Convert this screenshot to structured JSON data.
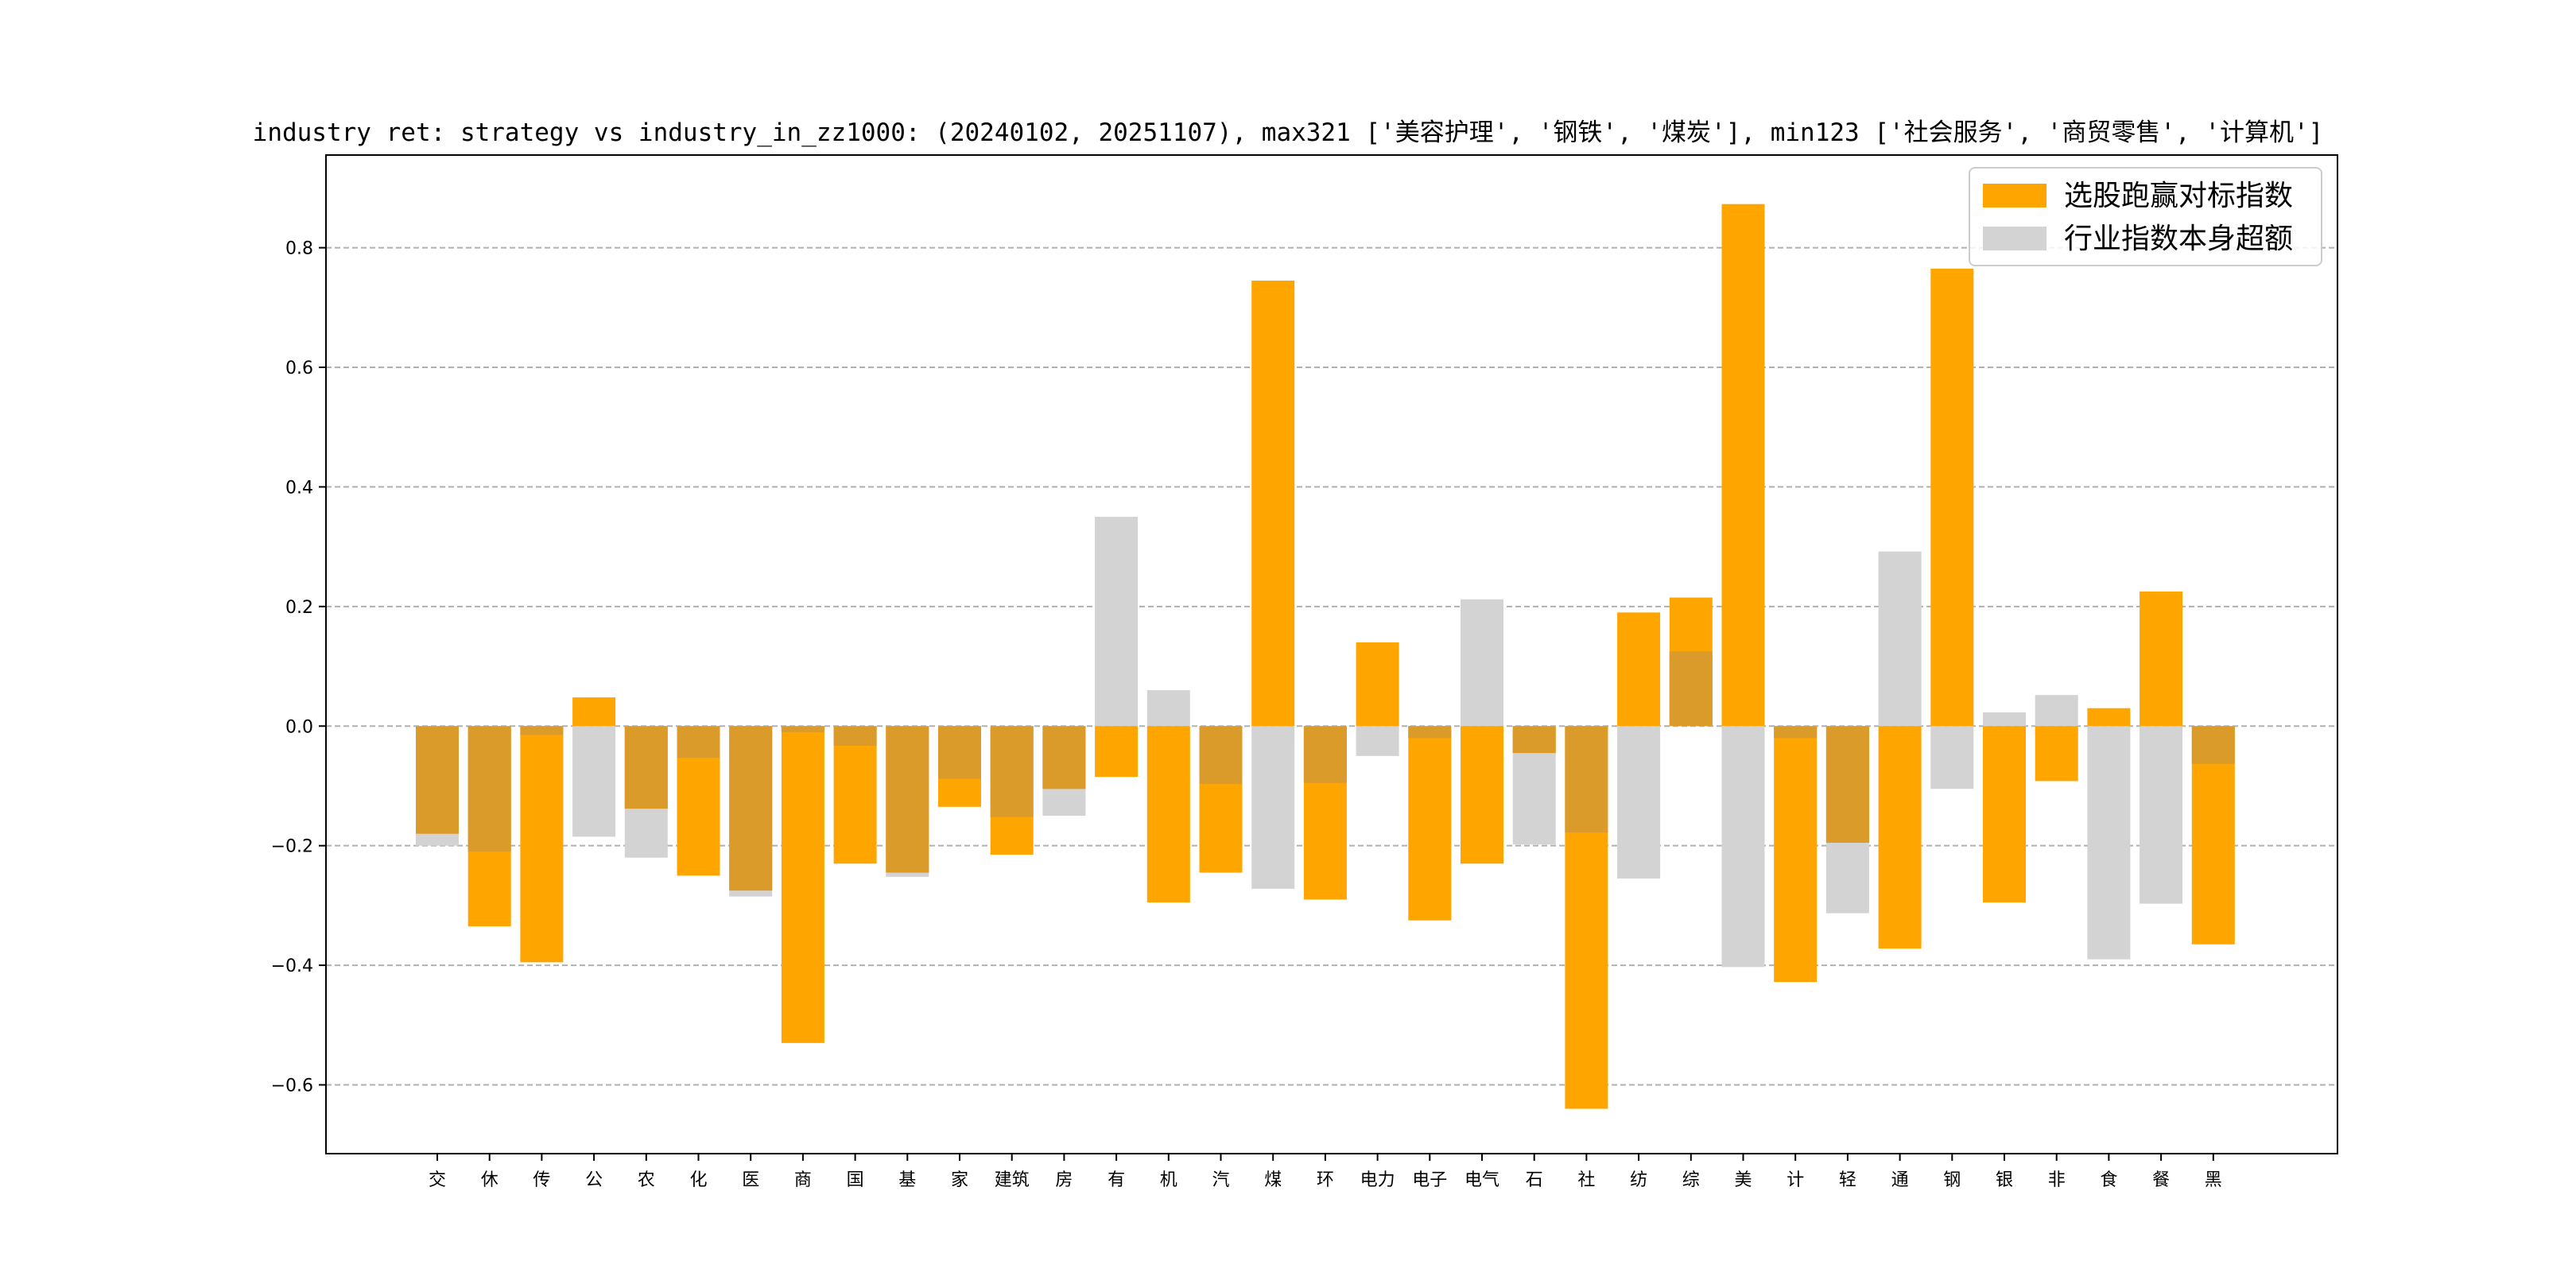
{
  "chart_data": {
    "type": "bar",
    "title": "industry ret: strategy vs industry_in_zz1000: (20240102, 20251107), max321 ['美容护理', '钢铁', '煤炭'], min123 ['社会服务', '商贸零售', '计算机']",
    "xlabel": "",
    "ylabel": "",
    "ylim": [
      -0.715,
      0.955
    ],
    "yticks": [
      -0.6,
      -0.4,
      -0.2,
      0.0,
      0.2,
      0.4,
      0.6,
      0.8
    ],
    "ytick_labels": [
      "−0.6",
      "−0.4",
      "−0.2",
      "0.0",
      "0.2",
      "0.4",
      "0.6",
      "0.8"
    ],
    "grid": "y-dashed",
    "legend_position": "top-right",
    "categories": [
      "交",
      "休",
      "传",
      "公",
      "农",
      "化",
      "医",
      "商",
      "国",
      "基",
      "家",
      "建筑",
      "房",
      "有",
      "机",
      "汽",
      "煤",
      "环",
      "电力",
      "电子",
      "电气",
      "石",
      "社",
      "纺",
      "综",
      "美",
      "计",
      "轻",
      "通",
      "钢",
      "银",
      "非",
      "食",
      "餐",
      "黑"
    ],
    "series": [
      {
        "name": "选股跑赢对标指数",
        "color": "#FFA500",
        "values": [
          -0.18,
          -0.335,
          -0.395,
          0.048,
          -0.138,
          -0.25,
          -0.275,
          -0.53,
          -0.23,
          -0.245,
          -0.135,
          -0.215,
          -0.105,
          -0.085,
          -0.295,
          -0.245,
          0.745,
          -0.29,
          0.14,
          -0.325,
          -0.23,
          -0.045,
          -0.64,
          0.19,
          0.215,
          0.873,
          -0.428,
          -0.195,
          -0.372,
          0.765,
          -0.295,
          -0.092,
          0.03,
          0.225,
          -0.365
        ]
      },
      {
        "name": "行业指数本身超额",
        "color": "#D3D3D3",
        "values": [
          -0.2,
          -0.21,
          -0.015,
          -0.185,
          -0.22,
          -0.053,
          -0.285,
          -0.01,
          -0.033,
          -0.252,
          -0.088,
          -0.152,
          -0.15,
          0.35,
          0.06,
          -0.097,
          -0.272,
          -0.095,
          -0.05,
          -0.02,
          0.212,
          -0.198,
          -0.178,
          -0.255,
          0.125,
          -0.403,
          -0.02,
          -0.313,
          0.292,
          -0.105,
          0.023,
          0.052,
          -0.39,
          -0.297,
          -0.063
        ]
      }
    ]
  },
  "colors": {
    "strategy": "#FFA500",
    "industry": "#D3D3D3",
    "overlap": "#DA9B2B"
  }
}
